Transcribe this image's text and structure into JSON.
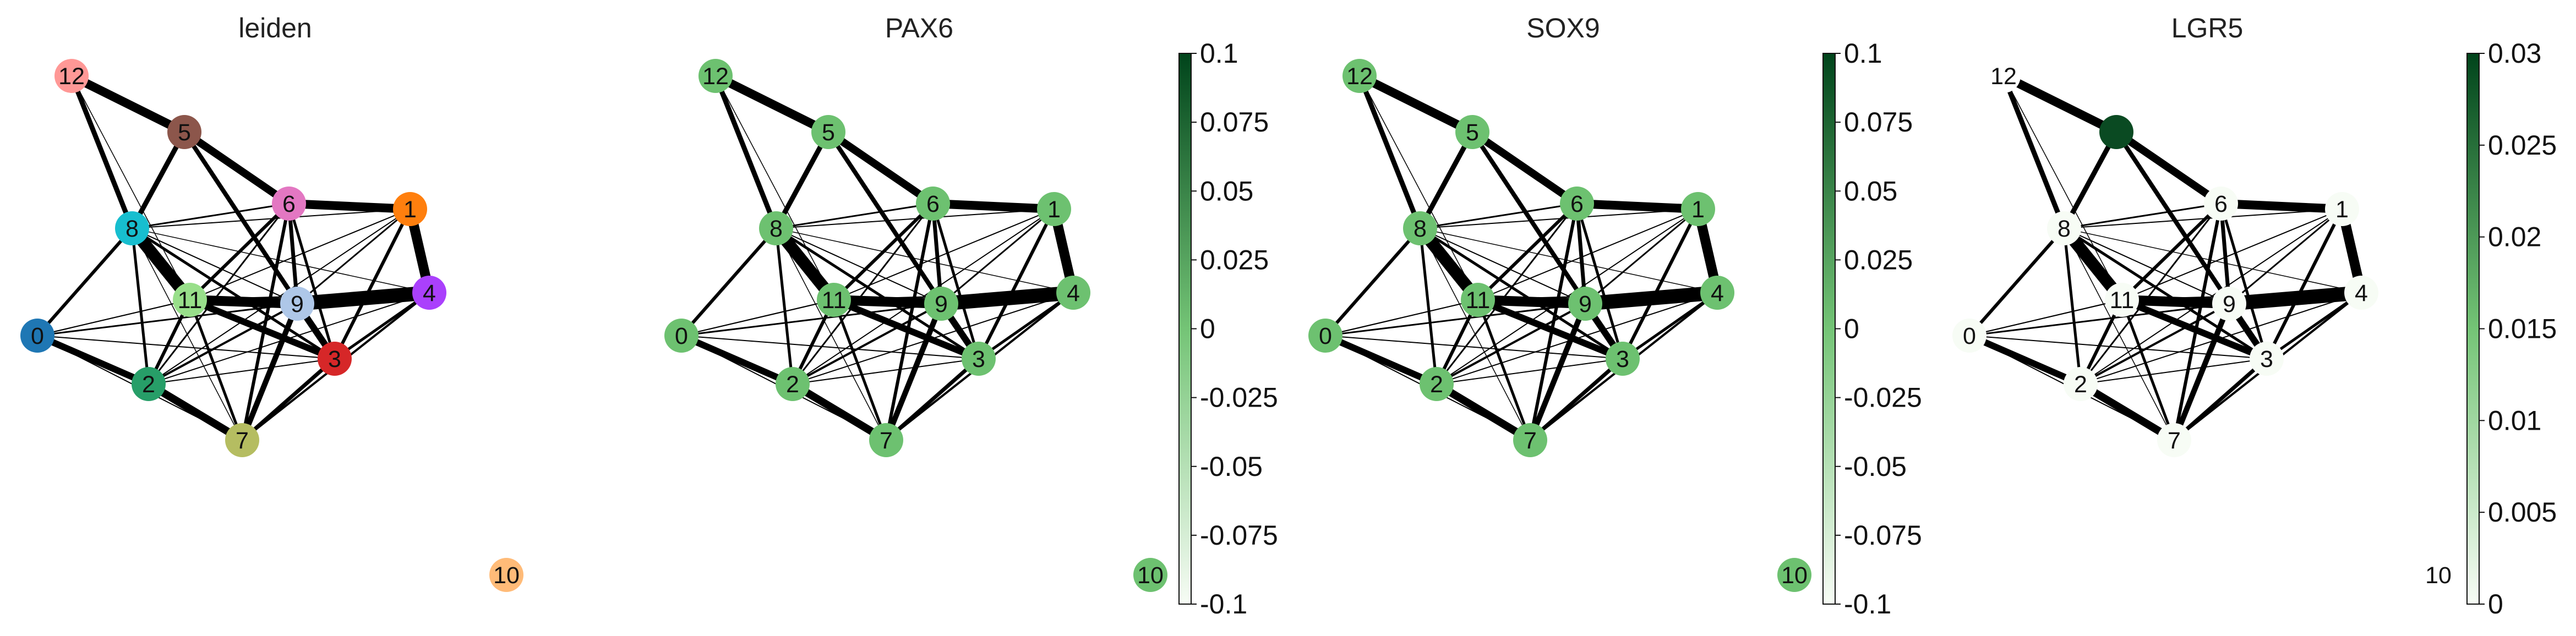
{
  "colors": {
    "edge": "#000000",
    "background": "#ffffff",
    "colormap_light": "#f7fcf5",
    "colormap_mid": "#74c476",
    "colormap_dark": "#00441b",
    "mid_green_node": "#6dc170",
    "white_node": "#f7fcf5",
    "dark_green_node": "#0a4a22"
  },
  "panels": [
    {
      "title": "leiden",
      "mode": "categorical",
      "node_colors": {
        "0": "#1f77b4",
        "1": "#ff7f0e",
        "2": "#279e68",
        "3": "#d62728",
        "4": "#aa40fc",
        "5": "#8c564b",
        "6": "#e377c2",
        "7": "#b5bd61",
        "8": "#17becf",
        "9": "#aec7e8",
        "10": "#ffbb78",
        "11": "#98df8a",
        "12": "#ff9896"
      }
    },
    {
      "title": "PAX6",
      "mode": "continuous",
      "node_colors": {
        "0": "#6dc170",
        "1": "#6dc170",
        "2": "#6dc170",
        "3": "#6dc170",
        "4": "#6dc170",
        "5": "#6dc170",
        "6": "#6dc170",
        "7": "#6dc170",
        "8": "#6dc170",
        "9": "#6dc170",
        "10": "#6dc170",
        "11": "#6dc170",
        "12": "#6dc170"
      },
      "colorbar": {
        "ticks": [
          "0.1",
          "0.075",
          "0.05",
          "0.025",
          "0",
          "-0.025",
          "-0.05",
          "-0.075",
          "-0.1"
        ]
      }
    },
    {
      "title": "SOX9",
      "mode": "continuous",
      "node_colors": {
        "0": "#6dc170",
        "1": "#6dc170",
        "2": "#6dc170",
        "3": "#6dc170",
        "4": "#6dc170",
        "5": "#6dc170",
        "6": "#6dc170",
        "7": "#6dc170",
        "8": "#6dc170",
        "9": "#6dc170",
        "10": "#6dc170",
        "11": "#6dc170",
        "12": "#6dc170"
      },
      "colorbar": {
        "ticks": [
          "0.1",
          "0.075",
          "0.05",
          "0.025",
          "0",
          "-0.025",
          "-0.05",
          "-0.075",
          "-0.1"
        ]
      }
    },
    {
      "title": "LGR5",
      "mode": "continuous",
      "node_colors": {
        "0": "#f7fcf5",
        "1": "#f7fcf5",
        "2": "#f7fcf5",
        "3": "#f7fcf5",
        "4": "#f7fcf5",
        "5": "#0a4a22",
        "6": "#f7fcf5",
        "7": "#f7fcf5",
        "8": "#f7fcf5",
        "9": "#f7fcf5",
        "10": "#ffffff",
        "11": "#f7fcf5",
        "12": "#ffffff"
      },
      "hidden_labels": [
        "5"
      ],
      "colorbar": {
        "ticks": [
          "0.03",
          "0.025",
          "0.02",
          "0.015",
          "0.01",
          "0.005",
          "0"
        ]
      }
    }
  ],
  "graph": {
    "node_labels": [
      "0",
      "1",
      "2",
      "3",
      "4",
      "5",
      "6",
      "7",
      "8",
      "9",
      "10",
      "11",
      "12"
    ]
  }
}
